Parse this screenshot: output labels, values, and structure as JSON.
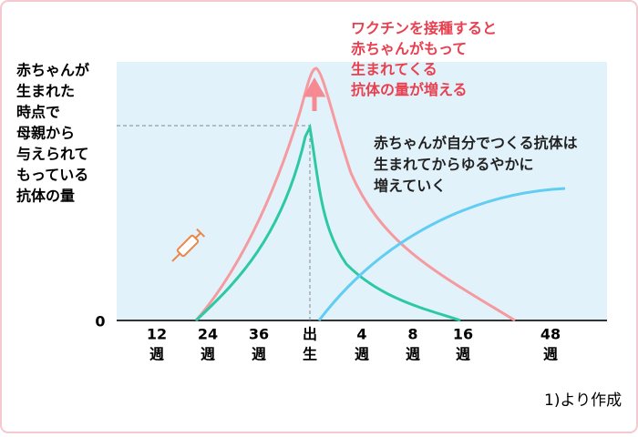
{
  "y_axis_label": [
    "赤ちゃんが",
    "生まれた",
    "時点で",
    "母親から",
    "与えられて",
    "もっている",
    "抗体の量"
  ],
  "zero_label": "0",
  "x_labels": [
    {
      "top": "12",
      "bottom": "週"
    },
    {
      "top": "24",
      "bottom": "週"
    },
    {
      "top": "36",
      "bottom": "週"
    },
    {
      "top": "出",
      "bottom": "生"
    },
    {
      "top": "4",
      "bottom": "週"
    },
    {
      "top": "8",
      "bottom": "週"
    },
    {
      "top": "16",
      "bottom": "週"
    },
    {
      "top": "48",
      "bottom": "週"
    }
  ],
  "annotations": {
    "vaccine": [
      "ワクチンを接種すると",
      "赤ちゃんがもって",
      "生まれてくる",
      "抗体の量が増える"
    ],
    "infant": [
      "赤ちゃんが自分でつくる抗体は",
      "生まれてからゆるやかに",
      "増えていく"
    ]
  },
  "source": "1)より作成"
}
